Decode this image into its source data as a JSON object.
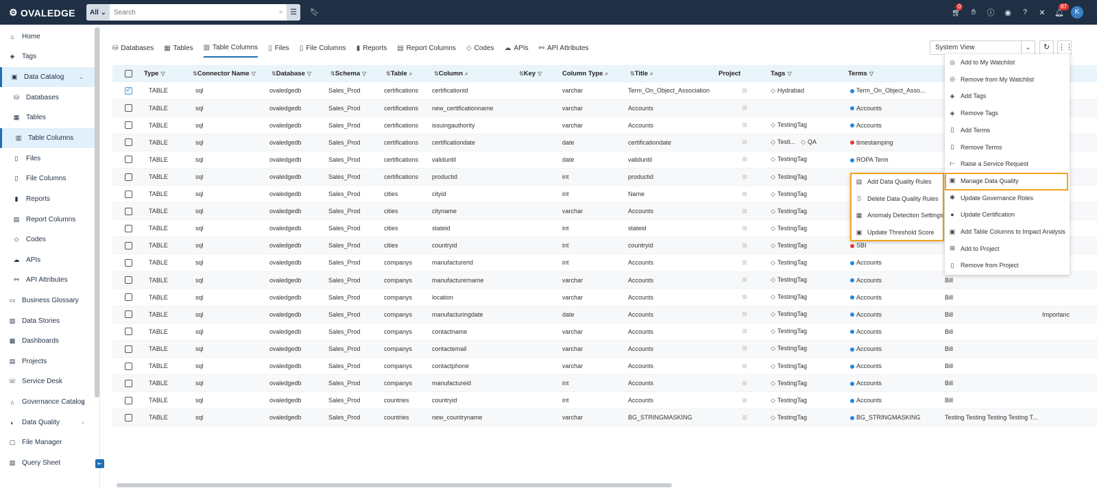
{
  "brand": "OVALEDGE",
  "search": {
    "scope": "All",
    "placeholder": "Search"
  },
  "topbar": {
    "cart_badge": "0",
    "notif_badge": "87",
    "avatar": "K"
  },
  "sidebar": {
    "items": [
      {
        "label": "Home",
        "icon": "home-icon",
        "chev": ""
      },
      {
        "label": "Tags",
        "icon": "tag-icon",
        "chev": ""
      },
      {
        "label": "Data Catalog",
        "icon": "catalog-icon",
        "chev": "⌄"
      },
      {
        "label": "Databases",
        "icon": "database-icon",
        "chev": ""
      },
      {
        "label": "Tables",
        "icon": "table-icon",
        "chev": ""
      },
      {
        "label": "Table Columns",
        "icon": "columns-icon",
        "chev": ""
      },
      {
        "label": "Files",
        "icon": "file-icon",
        "chev": ""
      },
      {
        "label": "File Columns",
        "icon": "file-columns-icon",
        "chev": ""
      },
      {
        "label": "Reports",
        "icon": "report-icon",
        "chev": ""
      },
      {
        "label": "Report Columns",
        "icon": "report-columns-icon",
        "chev": ""
      },
      {
        "label": "Codes",
        "icon": "code-icon",
        "chev": ""
      },
      {
        "label": "APIs",
        "icon": "cloud-icon",
        "chev": ""
      },
      {
        "label": "API Attributes",
        "icon": "api-attr-icon",
        "chev": ""
      },
      {
        "label": "Business Glossary",
        "icon": "glossary-icon",
        "chev": ""
      },
      {
        "label": "Data Stories",
        "icon": "stories-icon",
        "chev": ""
      },
      {
        "label": "Dashboards",
        "icon": "dashboard-icon",
        "chev": ""
      },
      {
        "label": "Projects",
        "icon": "projects-icon",
        "chev": ""
      },
      {
        "label": "Service Desk",
        "icon": "service-desk-icon",
        "chev": ""
      },
      {
        "label": "Governance Catalog",
        "icon": "governance-icon",
        "chev": "›"
      },
      {
        "label": "Data Quality",
        "icon": "quality-icon",
        "chev": "›"
      },
      {
        "label": "File Manager",
        "icon": "file-manager-icon",
        "chev": ""
      },
      {
        "label": "Query Sheet",
        "icon": "query-icon",
        "chev": ""
      }
    ]
  },
  "tabs": [
    {
      "label": "Databases",
      "icon": "database-icon"
    },
    {
      "label": "Tables",
      "icon": "table-icon"
    },
    {
      "label": "Table Columns",
      "icon": "columns-icon"
    },
    {
      "label": "Files",
      "icon": "file-icon"
    },
    {
      "label": "File Columns",
      "icon": "file-columns-icon"
    },
    {
      "label": "Reports",
      "icon": "report-icon"
    },
    {
      "label": "Report Columns",
      "icon": "report-columns-icon"
    },
    {
      "label": "Codes",
      "icon": "code-icon"
    },
    {
      "label": "APIs",
      "icon": "cloud-icon"
    },
    {
      "label": "API Attributes",
      "icon": "api-attr-icon"
    }
  ],
  "view": {
    "selected": "System View"
  },
  "table": {
    "headers": [
      "Type",
      "Connector Name",
      "Database",
      "Schema",
      "Table",
      "Column",
      "Key",
      "Column Type",
      "Title",
      "Project",
      "Tags",
      "Terms"
    ],
    "rows": [
      {
        "checked": true,
        "type": "TABLE",
        "connector": "sql",
        "database": "ovaledgedb",
        "schema": "Sales_Prod",
        "table": "certifications",
        "column": "certificationid",
        "key": "",
        "coltype": "varchar",
        "title": "Term_On_Object_Association",
        "tags": [
          "Hydrabad"
        ],
        "term": "Term_On_Object_Asso...",
        "term_color": "blue",
        "extra": "",
        "extra2": ""
      },
      {
        "checked": false,
        "type": "TABLE",
        "connector": "sql",
        "database": "ovaledgedb",
        "schema": "Sales_Prod",
        "table": "certifications",
        "column": "new_certificationname",
        "key": "",
        "coltype": "varchar",
        "title": "Accounts",
        "tags": [],
        "term": "Accounts",
        "term_color": "blue",
        "extra": "",
        "extra2": ""
      },
      {
        "checked": false,
        "type": "TABLE",
        "connector": "sql",
        "database": "ovaledgedb",
        "schema": "Sales_Prod",
        "table": "certifications",
        "column": "issuingauthority",
        "key": "",
        "coltype": "varchar",
        "title": "Accounts",
        "tags": [
          "TestingTag"
        ],
        "term": "Accounts",
        "term_color": "blue",
        "extra": "",
        "extra2": ""
      },
      {
        "checked": false,
        "type": "TABLE",
        "connector": "sql",
        "database": "ovaledgedb",
        "schema": "Sales_Prod",
        "table": "certifications",
        "column": "certificationdate",
        "key": "",
        "coltype": "date",
        "title": "certificationdate",
        "tags": [
          "Testi...",
          "QA"
        ],
        "term": "timestamping",
        "term_color": "red",
        "extra": "",
        "extra2": ""
      },
      {
        "checked": false,
        "type": "TABLE",
        "connector": "sql",
        "database": "ovaledgedb",
        "schema": "Sales_Prod",
        "table": "certifications",
        "column": "validuntil",
        "key": "",
        "coltype": "date",
        "title": "validuntil",
        "tags": [
          "TestingTag"
        ],
        "term": "ROPA Term",
        "term_color": "blue",
        "extra": "",
        "extra2": ""
      },
      {
        "checked": false,
        "type": "TABLE",
        "connector": "sql",
        "database": "ovaledgedb",
        "schema": "Sales_Prod",
        "table": "certifications",
        "column": "productid",
        "key": "",
        "coltype": "int",
        "title": "productid",
        "tags": [
          "TestingTag"
        ],
        "term": "",
        "term_color": "blue",
        "extra": "",
        "extra2": ""
      },
      {
        "checked": false,
        "type": "TABLE",
        "connector": "sql",
        "database": "ovaledgedb",
        "schema": "Sales_Prod",
        "table": "cities",
        "column": "cityid",
        "key": "",
        "coltype": "int",
        "title": "Name",
        "tags": [
          "TestingTag"
        ],
        "term": "",
        "term_color": "blue",
        "extra": "",
        "extra2": ""
      },
      {
        "checked": false,
        "type": "TABLE",
        "connector": "sql",
        "database": "ovaledgedb",
        "schema": "Sales_Prod",
        "table": "cities",
        "column": "cityname",
        "key": "",
        "coltype": "varchar",
        "title": "Accounts",
        "tags": [
          "TestingTag"
        ],
        "term": "",
        "term_color": "blue",
        "extra": "",
        "extra2": ""
      },
      {
        "checked": false,
        "type": "TABLE",
        "connector": "sql",
        "database": "ovaledgedb",
        "schema": "Sales_Prod",
        "table": "cities",
        "column": "stateid",
        "key": "",
        "coltype": "int",
        "title": "stateid",
        "tags": [
          "TestingTag"
        ],
        "term": "",
        "term_color": "blue",
        "extra": "",
        "extra2": ""
      },
      {
        "checked": false,
        "type": "TABLE",
        "connector": "sql",
        "database": "ovaledgedb",
        "schema": "Sales_Prod",
        "table": "cities",
        "column": "countryid",
        "key": "",
        "coltype": "int",
        "title": "countryid",
        "tags": [
          "TestingTag"
        ],
        "term": "SBI",
        "term_color": "red",
        "extra": "",
        "extra2": ""
      },
      {
        "checked": false,
        "type": "TABLE",
        "connector": "sql",
        "database": "ovaledgedb",
        "schema": "Sales_Prod",
        "table": "companys",
        "column": "manufacturerid",
        "key": "",
        "coltype": "int",
        "title": "Accounts",
        "tags": [
          "TestingTag"
        ],
        "term": "Accounts",
        "term_color": "blue",
        "extra": "",
        "extra2": ""
      },
      {
        "checked": false,
        "type": "TABLE",
        "connector": "sql",
        "database": "ovaledgedb",
        "schema": "Sales_Prod",
        "table": "companys",
        "column": "manufacturername",
        "key": "",
        "coltype": "varchar",
        "title": "Accounts",
        "tags": [
          "TestingTag"
        ],
        "term": "Accounts",
        "term_color": "blue",
        "extra": "Bill",
        "extra2": ""
      },
      {
        "checked": false,
        "type": "TABLE",
        "connector": "sql",
        "database": "ovaledgedb",
        "schema": "Sales_Prod",
        "table": "companys",
        "column": "location",
        "key": "",
        "coltype": "varchar",
        "title": "Accounts",
        "tags": [
          "TestingTag"
        ],
        "term": "Accounts",
        "term_color": "blue",
        "extra": "Bill",
        "extra2": ""
      },
      {
        "checked": false,
        "type": "TABLE",
        "connector": "sql",
        "database": "ovaledgedb",
        "schema": "Sales_Prod",
        "table": "companys",
        "column": "manufacturingdate",
        "key": "",
        "coltype": "date",
        "title": "Accounts",
        "tags": [
          "TestingTag"
        ],
        "term": "Accounts",
        "term_color": "blue",
        "extra": "Bill",
        "extra2": "Importanc"
      },
      {
        "checked": false,
        "type": "TABLE",
        "connector": "sql",
        "database": "ovaledgedb",
        "schema": "Sales_Prod",
        "table": "companys",
        "column": "contactname",
        "key": "",
        "coltype": "varchar",
        "title": "Accounts",
        "tags": [
          "TestingTag"
        ],
        "term": "Accounts",
        "term_color": "blue",
        "extra": "Bill",
        "extra2": ""
      },
      {
        "checked": false,
        "type": "TABLE",
        "connector": "sql",
        "database": "ovaledgedb",
        "schema": "Sales_Prod",
        "table": "companys",
        "column": "contactemail",
        "key": "",
        "coltype": "varchar",
        "title": "Accounts",
        "tags": [
          "TestingTag"
        ],
        "term": "Accounts",
        "term_color": "blue",
        "extra": "Bill",
        "extra2": ""
      },
      {
        "checked": false,
        "type": "TABLE",
        "connector": "sql",
        "database": "ovaledgedb",
        "schema": "Sales_Prod",
        "table": "companys",
        "column": "contactphone",
        "key": "",
        "coltype": "varchar",
        "title": "Accounts",
        "tags": [
          "TestingTag"
        ],
        "term": "Accounts",
        "term_color": "blue",
        "extra": "Bill",
        "extra2": ""
      },
      {
        "checked": false,
        "type": "TABLE",
        "connector": "sql",
        "database": "ovaledgedb",
        "schema": "Sales_Prod",
        "table": "companys",
        "column": "manufactureid",
        "key": "",
        "coltype": "int",
        "title": "Accounts",
        "tags": [
          "TestingTag"
        ],
        "term": "Accounts",
        "term_color": "blue",
        "extra": "Bill",
        "extra2": ""
      },
      {
        "checked": false,
        "type": "TABLE",
        "connector": "sql",
        "database": "ovaledgedb",
        "schema": "Sales_Prod",
        "table": "countries",
        "column": "countryid",
        "key": "",
        "coltype": "int",
        "title": "Accounts",
        "tags": [
          "TestingTag"
        ],
        "term": "Accounts",
        "term_color": "blue",
        "extra": "Bill",
        "extra2": ""
      },
      {
        "checked": false,
        "type": "TABLE",
        "connector": "sql",
        "database": "ovaledgedb",
        "schema": "Sales_Prod",
        "table": "countries",
        "column": "new_countryname",
        "key": "",
        "coltype": "varchar",
        "title": "BG_STRINGMASKING",
        "tags": [
          "TestingTag"
        ],
        "term": "BG_STRINGMASKING",
        "term_color": "blue",
        "extra": "Testing Testing Testing Testing T...",
        "extra2": ""
      }
    ]
  },
  "main_menu": {
    "items": [
      {
        "label": "Add to My Watchlist",
        "icon": "eye-icon"
      },
      {
        "label": "Remove from My Watchlist",
        "icon": "eye-off-icon"
      },
      {
        "label": "Add Tags",
        "icon": "tag-icon"
      },
      {
        "label": "Remove Tags",
        "icon": "tag-remove-icon"
      },
      {
        "label": "Add Terms",
        "icon": "book-icon"
      },
      {
        "label": "Remove Terms",
        "icon": "trash-icon"
      },
      {
        "label": "Raise a Service Request",
        "icon": "service-request-icon"
      },
      {
        "label": "Manage Data Quality",
        "icon": "data-quality-icon"
      },
      {
        "label": "Update Governance Roles",
        "icon": "governance-roles-icon"
      },
      {
        "label": "Update Certification",
        "icon": "certification-icon"
      },
      {
        "label": "Add Table Columns to Impact Analysis",
        "icon": "impact-icon"
      },
      {
        "label": "Add to Project",
        "icon": "cart-icon"
      },
      {
        "label": "Remove from Project",
        "icon": "trash-icon"
      }
    ]
  },
  "dq_submenu": {
    "items": [
      {
        "label": "Add Data Quality Rules",
        "icon": "rule-add-icon"
      },
      {
        "label": "Delete Data Quality Rules",
        "icon": "trash-icon"
      },
      {
        "label": "Anomaly Detection Settings",
        "icon": "anomaly-icon"
      },
      {
        "label": "Update Threshold Score",
        "icon": "threshold-icon"
      }
    ]
  }
}
